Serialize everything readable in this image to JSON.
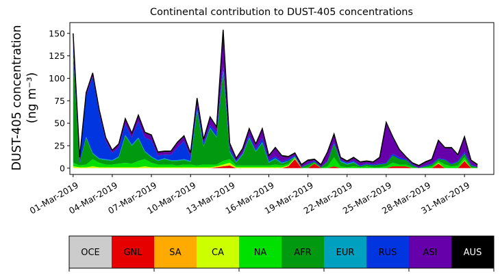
{
  "chart_data": {
    "type": "area",
    "stacked": true,
    "title": "Continental contribution to DUST-405 concentrations",
    "ylabel_line1": "DUST-405 concentration",
    "ylabel_line2": "(ng m⁻³)",
    "xlabel": "",
    "ylim": [
      -7,
      162
    ],
    "yticks": [
      0,
      25,
      50,
      75,
      100,
      125,
      150
    ],
    "xlim": [
      "2019-02-28T18:00",
      "2019-04-02T06:00"
    ],
    "xtick_labels": [
      "01-Mar-2019",
      "04-Mar-2019",
      "07-Mar-2019",
      "10-Mar-2019",
      "13-Mar-2019",
      "16-Mar-2019",
      "19-Mar-2019",
      "22-Mar-2019",
      "25-Mar-2019",
      "28-Mar-2019",
      "31-Mar-2019"
    ],
    "xtick_dates": [
      "2019-03-01",
      "2019-03-04",
      "2019-03-07",
      "2019-03-10",
      "2019-03-13",
      "2019-03-16",
      "2019-03-19",
      "2019-03-22",
      "2019-03-25",
      "2019-03-28",
      "2019-03-31"
    ],
    "grid": false,
    "x": [
      "2019-03-01T00:00",
      "2019-03-01T12:00",
      "2019-03-02T00:00",
      "2019-03-02T12:00",
      "2019-03-03T00:00",
      "2019-03-03T12:00",
      "2019-03-04T00:00",
      "2019-03-04T12:00",
      "2019-03-05T00:00",
      "2019-03-05T12:00",
      "2019-03-06T00:00",
      "2019-03-06T12:00",
      "2019-03-07T00:00",
      "2019-03-07T12:00",
      "2019-03-08T00:00",
      "2019-03-08T12:00",
      "2019-03-09T00:00",
      "2019-03-09T12:00",
      "2019-03-10T00:00",
      "2019-03-10T12:00",
      "2019-03-11T00:00",
      "2019-03-11T12:00",
      "2019-03-12T00:00",
      "2019-03-12T12:00",
      "2019-03-13T00:00",
      "2019-03-13T12:00",
      "2019-03-14T00:00",
      "2019-03-14T12:00",
      "2019-03-15T00:00",
      "2019-03-15T12:00",
      "2019-03-16T00:00",
      "2019-03-16T12:00",
      "2019-03-17T00:00",
      "2019-03-17T12:00",
      "2019-03-18T00:00",
      "2019-03-18T12:00",
      "2019-03-19T00:00",
      "2019-03-19T12:00",
      "2019-03-20T00:00",
      "2019-03-20T12:00",
      "2019-03-21T00:00",
      "2019-03-21T12:00",
      "2019-03-22T00:00",
      "2019-03-22T12:00",
      "2019-03-23T00:00",
      "2019-03-23T12:00",
      "2019-03-24T00:00",
      "2019-03-24T12:00",
      "2019-03-25T00:00",
      "2019-03-25T12:00",
      "2019-03-26T00:00",
      "2019-03-26T12:00",
      "2019-03-27T00:00",
      "2019-03-27T12:00",
      "2019-03-28T00:00",
      "2019-03-28T12:00",
      "2019-03-29T00:00",
      "2019-03-29T12:00",
      "2019-03-30T00:00",
      "2019-03-30T12:00",
      "2019-03-31T00:00",
      "2019-03-31T12:00",
      "2019-04-01T00:00"
    ],
    "series": [
      {
        "name": "OCE",
        "color": "#cccccc",
        "values": [
          0,
          0,
          0,
          0,
          0,
          0,
          0,
          0,
          0,
          0,
          0,
          0,
          0,
          0,
          0,
          0,
          0,
          0,
          0,
          0,
          0,
          0,
          0,
          0,
          0,
          0,
          0,
          0,
          0,
          0,
          0,
          0,
          0,
          0,
          0,
          0,
          0,
          0,
          0,
          0,
          0,
          0,
          0,
          0,
          0,
          0,
          0,
          0,
          0,
          0,
          0,
          0,
          0,
          0,
          0,
          0,
          0,
          0,
          0,
          0,
          0,
          0,
          0
        ]
      },
      {
        "name": "GNL",
        "color": "#e60000",
        "values": [
          0,
          0,
          0,
          0,
          0,
          0,
          0,
          0,
          0,
          0,
          0,
          0,
          0,
          0,
          0,
          0,
          0,
          0,
          0,
          0,
          0,
          0,
          1,
          2,
          3,
          0,
          0,
          0,
          0,
          0,
          0,
          0,
          0,
          2,
          10,
          0,
          0,
          5,
          0,
          0,
          2,
          0,
          0,
          0,
          0,
          0,
          0,
          0,
          0,
          2,
          2,
          2,
          0,
          0,
          0,
          0,
          5,
          0,
          0,
          0,
          8,
          0,
          0
        ]
      },
      {
        "name": "SA",
        "color": "#ffaa00",
        "values": [
          0,
          0,
          0,
          0,
          0,
          0,
          0,
          0,
          0,
          0,
          0,
          0,
          0,
          0,
          0,
          0,
          0,
          0,
          0,
          0,
          0,
          0,
          0,
          0,
          0,
          0,
          0,
          0,
          0,
          0,
          0,
          0,
          0,
          0,
          0,
          0,
          0,
          0,
          0,
          0,
          0,
          0,
          0,
          0,
          0,
          0,
          0,
          0,
          0,
          0,
          0,
          0,
          0,
          0,
          0,
          0,
          0,
          0,
          0,
          0,
          0,
          0,
          0
        ]
      },
      {
        "name": "CA",
        "color": "#ccff00",
        "values": [
          2,
          1,
          1,
          2,
          1,
          1,
          1,
          1,
          1,
          1,
          1,
          2,
          1,
          1,
          1,
          1,
          1,
          1,
          1,
          1,
          1,
          1,
          1,
          2,
          3,
          1,
          1,
          1,
          1,
          1,
          1,
          1,
          1,
          1,
          1,
          0,
          0,
          0,
          0,
          0,
          0,
          0,
          0,
          0,
          0,
          0,
          0,
          0,
          0,
          0,
          0,
          0,
          0,
          0,
          0,
          0,
          1,
          0,
          0,
          0,
          1,
          0,
          0
        ]
      },
      {
        "name": "NA",
        "color": "#00e000",
        "values": [
          4,
          2,
          3,
          8,
          5,
          3,
          3,
          4,
          5,
          4,
          7,
          8,
          5,
          3,
          3,
          3,
          2,
          3,
          3,
          2,
          3,
          3,
          2,
          4,
          4,
          2,
          2,
          2,
          2,
          2,
          2,
          3,
          2,
          2,
          1,
          0,
          1,
          1,
          0,
          2,
          10,
          2,
          1,
          2,
          1,
          2,
          1,
          1,
          2,
          4,
          2,
          2,
          1,
          0,
          1,
          2,
          2,
          4,
          2,
          3,
          3,
          1,
          0
        ]
      },
      {
        "name": "AFR",
        "color": "#009910",
        "values": [
          120,
          3,
          30,
          6,
          4,
          5,
          4,
          7,
          30,
          20,
          25,
          8,
          6,
          4,
          6,
          4,
          5,
          5,
          3,
          60,
          20,
          40,
          30,
          100,
          8,
          3,
          12,
          30,
          15,
          25,
          3,
          6,
          2,
          3,
          0,
          1,
          3,
          1,
          1,
          5,
          15,
          5,
          3,
          4,
          1,
          2,
          2,
          3,
          3,
          8,
          6,
          5,
          2,
          0,
          1,
          2,
          2,
          5,
          2,
          4,
          4,
          2,
          1
        ]
      },
      {
        "name": "EUR",
        "color": "#00a0c0",
        "values": [
          0,
          0,
          1,
          1,
          1,
          1,
          1,
          1,
          1,
          1,
          1,
          1,
          1,
          1,
          1,
          1,
          1,
          1,
          1,
          2,
          1,
          1,
          1,
          2,
          1,
          1,
          1,
          1,
          1,
          1,
          1,
          1,
          1,
          0,
          1,
          0,
          0,
          0,
          0,
          0,
          0,
          1,
          1,
          1,
          0,
          0,
          0,
          0,
          0,
          0,
          0,
          0,
          0,
          0,
          0,
          0,
          0,
          0,
          0,
          0,
          0,
          0,
          0
        ]
      },
      {
        "name": "RUS",
        "color": "#0035e0",
        "values": [
          8,
          2,
          45,
          85,
          50,
          20,
          8,
          10,
          12,
          8,
          18,
          15,
          18,
          5,
          4,
          6,
          14,
          20,
          5,
          5,
          3,
          3,
          5,
          5,
          3,
          1,
          1,
          3,
          2,
          4,
          2,
          2,
          1,
          2,
          1,
          0,
          1,
          1,
          0,
          1,
          2,
          1,
          1,
          1,
          1,
          1,
          1,
          1,
          1,
          2,
          2,
          1,
          1,
          0,
          1,
          1,
          1,
          1,
          1,
          1,
          2,
          1,
          0
        ]
      },
      {
        "name": "ASI",
        "color": "#6600aa",
        "values": [
          15,
          3,
          3,
          3,
          3,
          3,
          2,
          3,
          5,
          4,
          6,
          5,
          5,
          3,
          3,
          3,
          5,
          5,
          3,
          7,
          3,
          8,
          5,
          38,
          5,
          2,
          4,
          6,
          5,
          10,
          4,
          9,
          6,
          2,
          2,
          2,
          3,
          1,
          2,
          9,
          8,
          2,
          1,
          3,
          3,
          2,
          2,
          6,
          44,
          18,
          8,
          2,
          1,
          2,
          3,
          4,
          19,
          12,
          17,
          6,
          16,
          4,
          2
        ]
      },
      {
        "name": "AUS",
        "color": "#000000",
        "values": [
          1,
          1,
          1,
          1,
          1,
          1,
          1,
          1,
          1,
          1,
          1,
          1,
          1,
          1,
          1,
          1,
          1,
          1,
          1,
          1,
          1,
          1,
          1,
          1,
          1,
          1,
          1,
          1,
          1,
          1,
          1,
          1,
          1,
          1,
          1,
          1,
          1,
          1,
          1,
          1,
          1,
          1,
          1,
          1,
          1,
          1,
          1,
          1,
          1,
          1,
          1,
          1,
          1,
          1,
          1,
          1,
          1,
          1,
          1,
          1,
          1,
          1,
          1
        ]
      }
    ],
    "legend_position": "bottom"
  }
}
